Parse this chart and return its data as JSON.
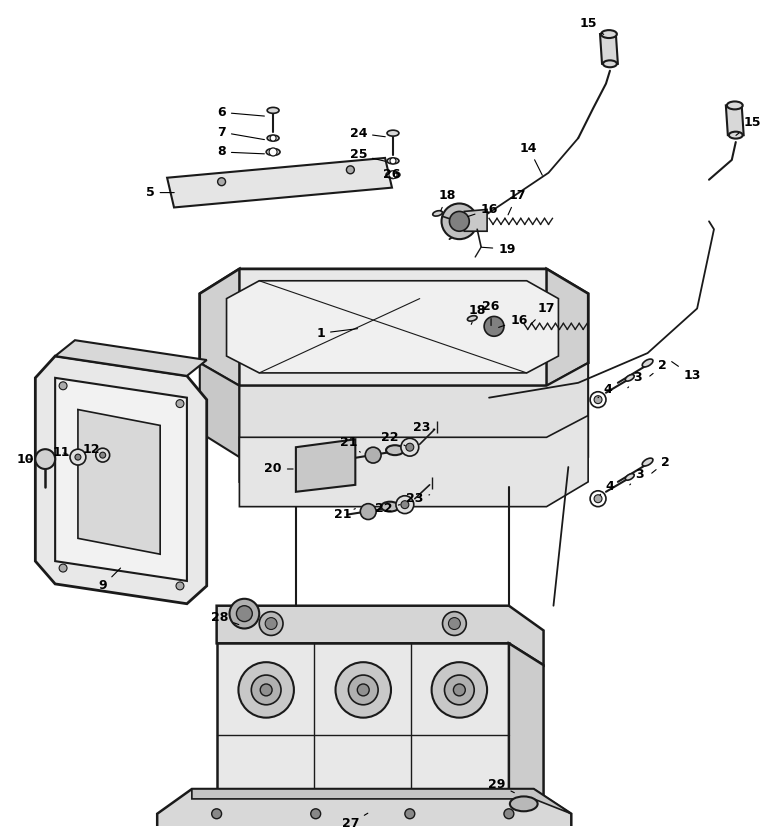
{
  "bg_color": "#ffffff",
  "line_color": "#1a1a1a",
  "fig_width": 7.81,
  "fig_height": 8.32,
  "dpi": 100
}
